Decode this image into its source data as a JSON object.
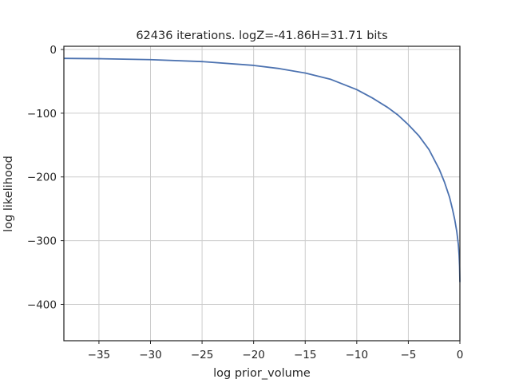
{
  "chart_data": {
    "type": "line",
    "title": "62436 iterations. logZ=-41.86H=31.71 bits",
    "xlabel": "log prior_volume",
    "ylabel": "log likelihood",
    "xlim": [
      -38.4,
      0
    ],
    "ylim": [
      -457,
      5
    ],
    "x_ticks": [
      -35,
      -30,
      -25,
      -20,
      -15,
      -10,
      -5,
      0
    ],
    "x_tick_labels": [
      "−35",
      "−30",
      "−25",
      "−20",
      "−15",
      "−10",
      "−5",
      "0"
    ],
    "y_ticks": [
      0,
      -100,
      -200,
      -300,
      -400
    ],
    "y_tick_labels": [
      "0",
      "−100",
      "−200",
      "−300",
      "−400"
    ],
    "grid": true,
    "series": [
      {
        "color": "#4c72b0",
        "x": [
          -38.4,
          -35,
          -30,
          -25,
          -20,
          -17.5,
          -15,
          -12.5,
          -10,
          -8.5,
          -7,
          -6,
          -5,
          -4,
          -3,
          -2,
          -1.5,
          -1,
          -0.7,
          -0.5,
          -0.3,
          -0.15,
          -0.08,
          -0.03,
          0
        ],
        "y": [
          -14,
          -14.5,
          -16,
          -19,
          -25,
          -30,
          -37,
          -47,
          -63,
          -76,
          -91,
          -103,
          -118,
          -135,
          -157,
          -188,
          -208,
          -232,
          -252,
          -267,
          -286,
          -306,
          -322,
          -340,
          -365
        ]
      }
    ]
  }
}
